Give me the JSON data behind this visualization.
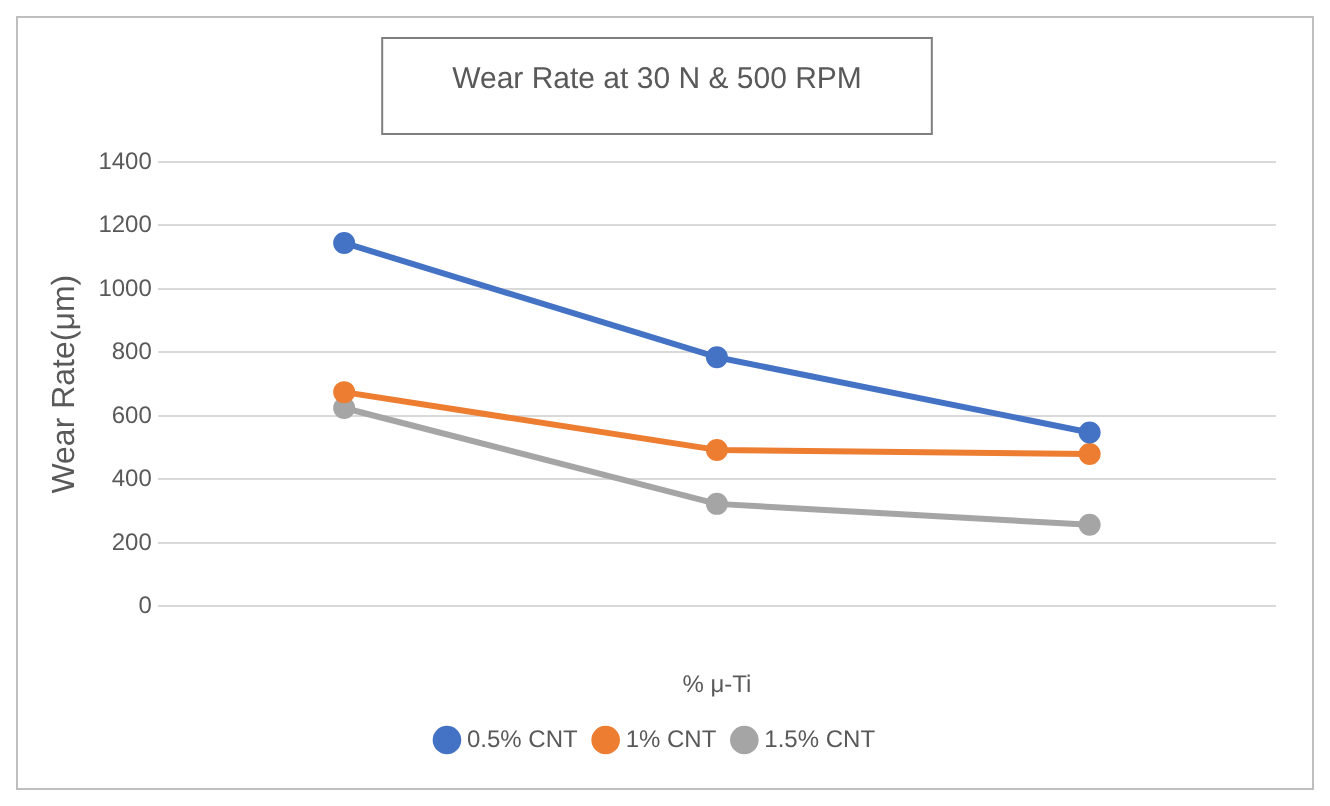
{
  "chart_data": {
    "type": "line",
    "title": "Wear Rate at 30 N & 500 RPM",
    "xlabel": "% μ-Ti",
    "ylabel": "Wear Rate(μm)",
    "categories": [
      null,
      null,
      null
    ],
    "series": [
      {
        "name": "0.5% CNT",
        "color": "#4472c4",
        "values": [
          1145,
          785,
          548
        ]
      },
      {
        "name": "1% CNT",
        "color": "#ed7d31",
        "values": [
          675,
          493,
          480
        ]
      },
      {
        "name": "1.5% CNT",
        "color": "#a5a5a5",
        "values": [
          625,
          323,
          257
        ]
      }
    ],
    "ylim": [
      0,
      1400
    ],
    "yticks": [
      0,
      200,
      400,
      600,
      800,
      1000,
      1200,
      1400
    ],
    "grid": "y",
    "legend": "bottom",
    "marker": "circle",
    "line_style": "solid"
  }
}
